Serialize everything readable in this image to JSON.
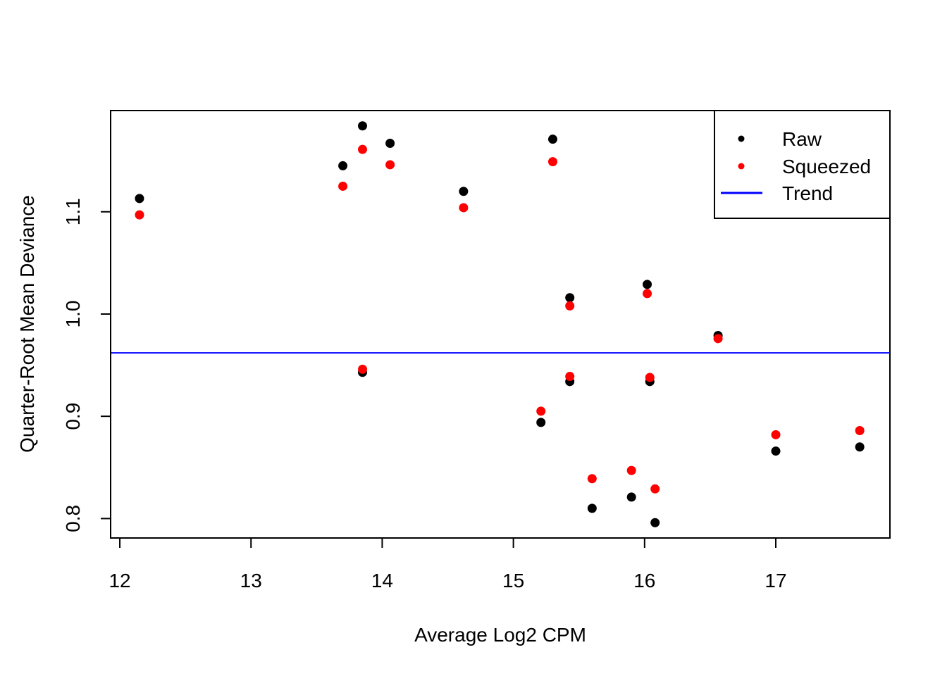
{
  "chart_data": {
    "type": "scatter",
    "title": "",
    "xlabel": "Average Log2 CPM",
    "ylabel": "Quarter-Root Mean Deviance",
    "xlim": [
      11.93,
      17.87
    ],
    "ylim": [
      0.781,
      1.199
    ],
    "x_ticks": [
      12,
      13,
      14,
      15,
      16,
      17
    ],
    "x_tick_labels": [
      "12",
      "13",
      "14",
      "15",
      "16",
      "17"
    ],
    "y_ticks": [
      0.8,
      0.9,
      1.0,
      1.1
    ],
    "y_tick_labels": [
      "0.8",
      "0.9",
      "1.0",
      "1.1"
    ],
    "grid": false,
    "legend_position": "top-right",
    "legend": [
      {
        "label": "Raw",
        "kind": "point",
        "color": "#000000"
      },
      {
        "label": "Squeezed",
        "kind": "point",
        "color": "#ff0000"
      },
      {
        "label": "Trend",
        "kind": "line",
        "color": "#0000ff"
      }
    ],
    "series": [
      {
        "name": "Raw",
        "color": "#000000",
        "points": [
          [
            12.15,
            1.113
          ],
          [
            13.7,
            1.145
          ],
          [
            13.85,
            1.184
          ],
          [
            13.85,
            0.943
          ],
          [
            14.06,
            1.167
          ],
          [
            14.62,
            1.12
          ],
          [
            15.21,
            0.894
          ],
          [
            15.3,
            1.171
          ],
          [
            15.43,
            1.016
          ],
          [
            15.43,
            0.934
          ],
          [
            15.6,
            0.81
          ],
          [
            15.9,
            0.821
          ],
          [
            16.02,
            1.029
          ],
          [
            16.04,
            0.934
          ],
          [
            16.08,
            0.796
          ],
          [
            16.56,
            0.979
          ],
          [
            17.0,
            0.866
          ],
          [
            17.64,
            0.87
          ]
        ]
      },
      {
        "name": "Squeezed",
        "color": "#ff0000",
        "points": [
          [
            12.15,
            1.097
          ],
          [
            13.7,
            1.125
          ],
          [
            13.85,
            1.161
          ],
          [
            13.85,
            0.946
          ],
          [
            14.06,
            1.146
          ],
          [
            14.62,
            1.104
          ],
          [
            15.21,
            0.905
          ],
          [
            15.3,
            1.149
          ],
          [
            15.43,
            1.008
          ],
          [
            15.43,
            0.939
          ],
          [
            15.6,
            0.839
          ],
          [
            15.9,
            0.847
          ],
          [
            16.02,
            1.02
          ],
          [
            16.04,
            0.938
          ],
          [
            16.08,
            0.829
          ],
          [
            16.56,
            0.976
          ],
          [
            17.0,
            0.882
          ],
          [
            17.64,
            0.886
          ]
        ]
      },
      {
        "name": "Trend",
        "color": "#0000ff",
        "type": "hline",
        "y": 0.962
      }
    ]
  }
}
